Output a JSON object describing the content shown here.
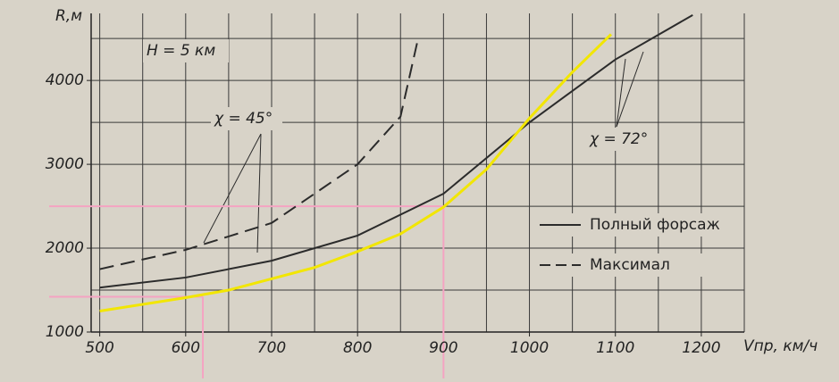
{
  "chart_data": {
    "type": "line",
    "annotations": {
      "altitude": "H = 5 км",
      "sweep_low": "χ = 45°",
      "sweep_high": "χ = 72°"
    },
    "y_label": "R,м",
    "x_label": "Vпр, км/ч",
    "xlim": [
      490,
      1250
    ],
    "ylim": [
      1000,
      4800
    ],
    "xticks": [
      500,
      600,
      700,
      800,
      900,
      1000,
      1100,
      1200
    ],
    "yticks": [
      1000,
      2000,
      3000,
      4000
    ],
    "xgrid": [
      500,
      550,
      600,
      650,
      700,
      750,
      800,
      850,
      900,
      950,
      1000,
      1050,
      1100,
      1150,
      1200,
      1250
    ],
    "ygrid": [
      1000,
      1500,
      2000,
      2500,
      3000,
      3500,
      4000,
      4500
    ],
    "grid": true,
    "series": [
      {
        "name": "Полный форсаж",
        "color": "#2b2b2b",
        "dash": false,
        "x": [
          500,
          600,
          700,
          800,
          900,
          1000,
          1100,
          1190
        ],
        "values": [
          1530,
          1650,
          1850,
          2150,
          2650,
          3500,
          4250,
          4780
        ]
      },
      {
        "name": "Максимал",
        "color": "#2b2b2b",
        "dash": true,
        "x": [
          500,
          600,
          700,
          800,
          850,
          870
        ],
        "values": [
          1750,
          1980,
          2300,
          3000,
          3570,
          4480
        ]
      },
      {
        "color": "#f2e600",
        "dash": false,
        "x": [
          500,
          600,
          650,
          750,
          800,
          850,
          900,
          950,
          1000,
          1050,
          1095
        ],
        "values": [
          1250,
          1410,
          1500,
          1770,
          1960,
          2170,
          2490,
          2940,
          3550,
          4100,
          4550
        ]
      }
    ],
    "guides": [
      {
        "x": 900,
        "y": 2500
      },
      {
        "x": 620,
        "y": 1420
      }
    ],
    "guide_color": "#f5a3c2"
  }
}
